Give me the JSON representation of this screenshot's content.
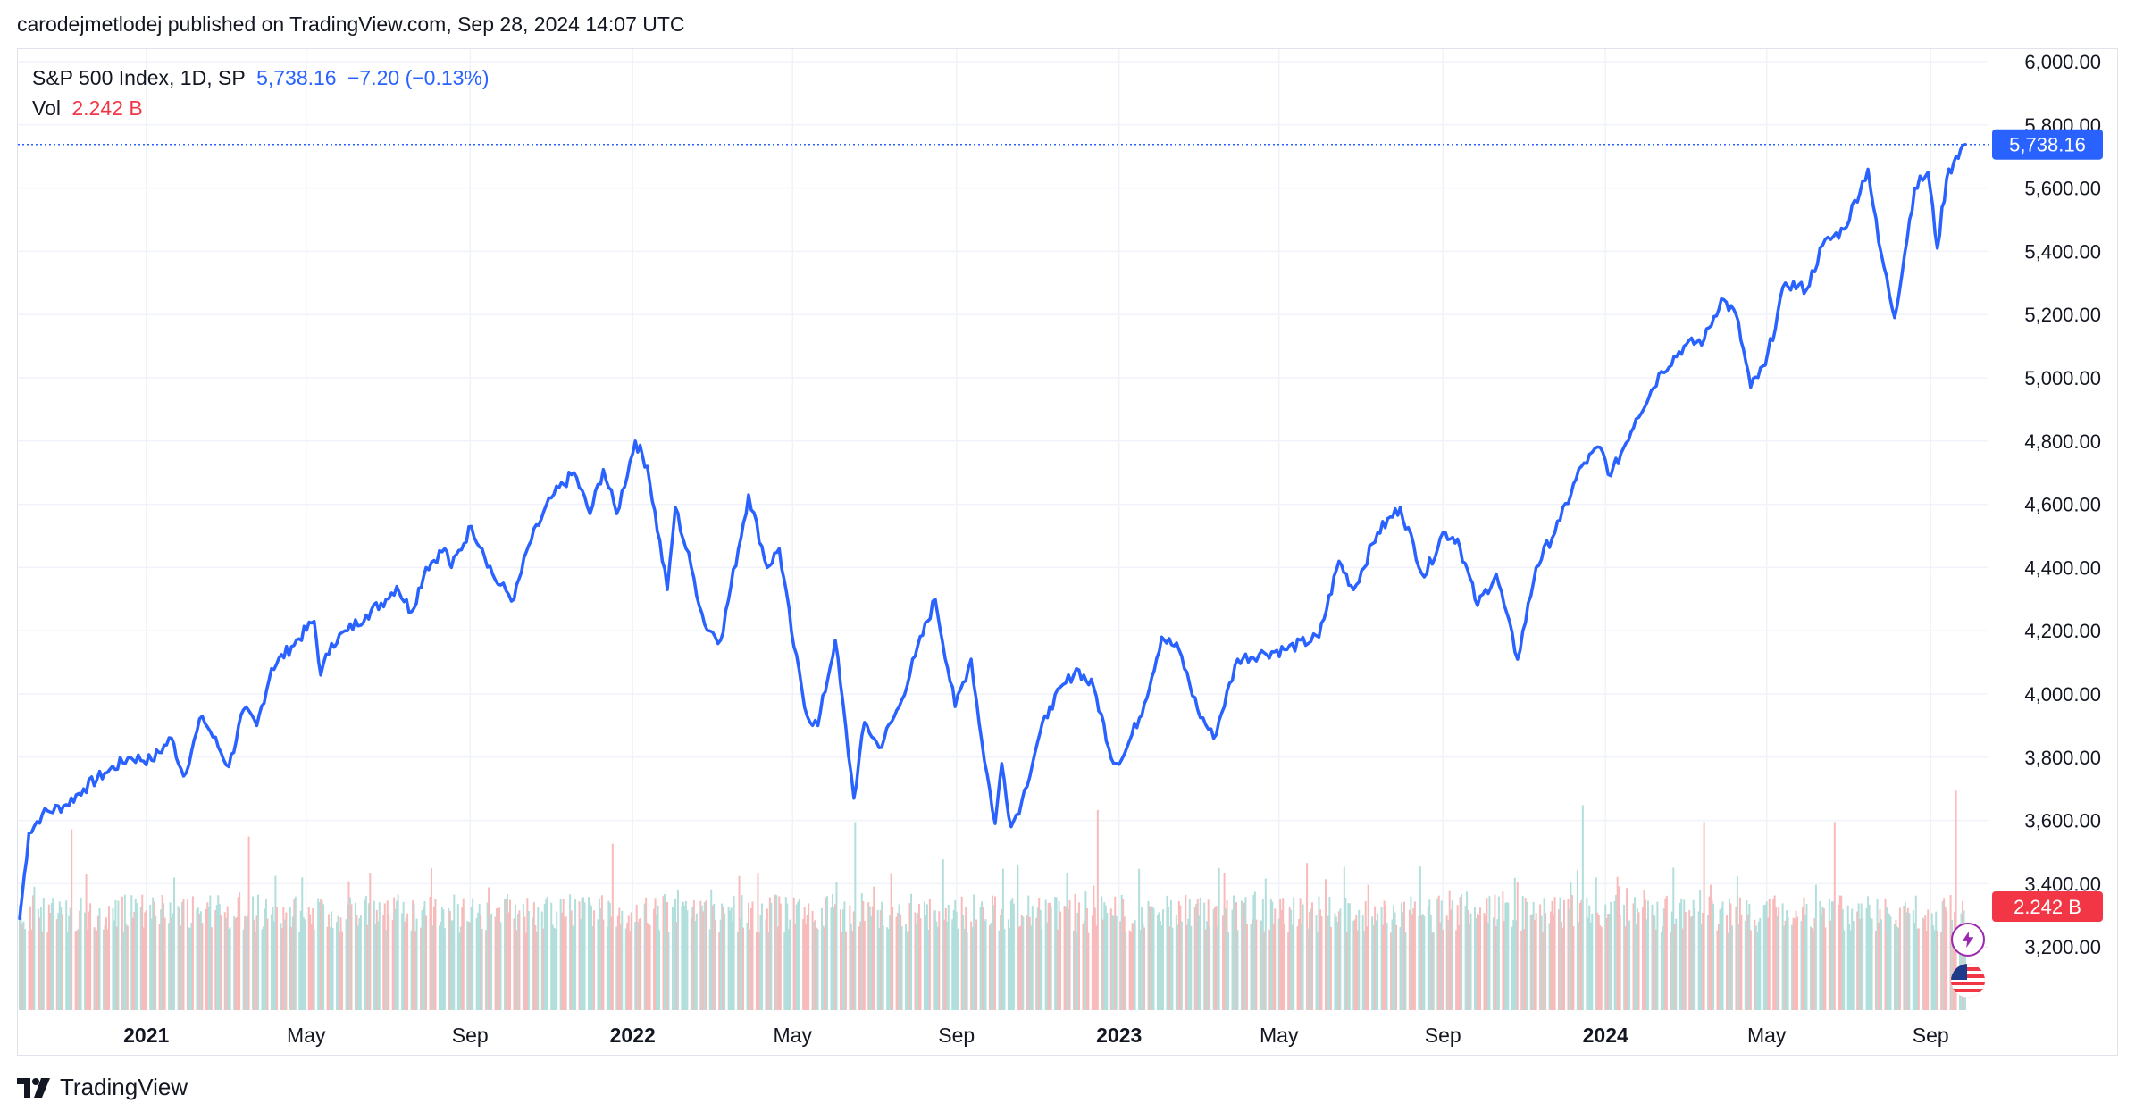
{
  "header": {
    "published_text": "carodejmetlodej published on TradingView.com, Sep 28, 2024 14:07 UTC"
  },
  "legend": {
    "symbol": "S&P 500 Index, 1D, SP",
    "last_price": "5,738.16",
    "change": "−7.20 (−0.13%)",
    "vol_label": "Vol",
    "vol_value": "2.242 B"
  },
  "price_tag": "5,738.16",
  "volume_tag": "2.242 B",
  "footer": {
    "brand": "TradingView"
  },
  "colors": {
    "line": "#2962ff",
    "up_volume": "#b2dfdb",
    "down_volume": "#f8bbbb",
    "volume_tag": "#f23645",
    "grid": "#f0f3fa"
  },
  "chart_data": {
    "type": "line",
    "title": "S&P 500 Index, 1D, SP",
    "y_axis": {
      "min": 3000,
      "max": 6000,
      "ticks": [
        "6,000.00",
        "5,800.00",
        "5,600.00",
        "5,400.00",
        "5,200.00",
        "5,000.00",
        "4,800.00",
        "4,600.00",
        "4,400.00",
        "4,200.00",
        "4,000.00",
        "3,800.00",
        "3,600.00",
        "3,400.00",
        "3,200.00"
      ],
      "tick_values": [
        6000,
        5800,
        5600,
        5400,
        5200,
        5000,
        4800,
        4600,
        4400,
        4200,
        4000,
        3800,
        3600,
        3400,
        3200
      ]
    },
    "x_axis": {
      "range": [
        "2020-09-28",
        "2024-09-27"
      ],
      "ticks": [
        {
          "label": "2021",
          "date": "2021-01-01",
          "bold": true
        },
        {
          "label": "May",
          "date": "2021-05-01",
          "bold": false
        },
        {
          "label": "Sep",
          "date": "2021-09-01",
          "bold": false
        },
        {
          "label": "2022",
          "date": "2022-01-01",
          "bold": true
        },
        {
          "label": "May",
          "date": "2022-05-01",
          "bold": false
        },
        {
          "label": "Sep",
          "date": "2022-09-01",
          "bold": false
        },
        {
          "label": "2023",
          "date": "2023-01-01",
          "bold": true
        },
        {
          "label": "May",
          "date": "2023-05-01",
          "bold": false
        },
        {
          "label": "Sep",
          "date": "2023-09-01",
          "bold": false
        },
        {
          "label": "2024",
          "date": "2024-01-01",
          "bold": true
        },
        {
          "label": "May",
          "date": "2024-05-01",
          "bold": false
        },
        {
          "label": "Sep",
          "date": "2024-09-01",
          "bold": false
        }
      ]
    },
    "series": [
      {
        "name": "S&P 500 Index close",
        "points": [
          [
            "2020-09-28",
            3290
          ],
          [
            "2020-10-05",
            3560
          ],
          [
            "2020-10-15",
            3620
          ],
          [
            "2020-11-02",
            3650
          ],
          [
            "2020-11-15",
            3700
          ],
          [
            "2020-12-01",
            3750
          ],
          [
            "2020-12-20",
            3800
          ],
          [
            "2021-01-05",
            3790
          ],
          [
            "2021-01-20",
            3860
          ],
          [
            "2021-01-29",
            3740
          ],
          [
            "2021-02-12",
            3930
          ],
          [
            "2021-03-04",
            3770
          ],
          [
            "2021-03-15",
            3950
          ],
          [
            "2021-03-25",
            3900
          ],
          [
            "2021-04-05",
            4080
          ],
          [
            "2021-04-20",
            4150
          ],
          [
            "2021-05-07",
            4230
          ],
          [
            "2021-05-12",
            4060
          ],
          [
            "2021-05-20",
            4160
          ],
          [
            "2021-06-01",
            4200
          ],
          [
            "2021-06-15",
            4250
          ],
          [
            "2021-06-30",
            4300
          ],
          [
            "2021-07-08",
            4340
          ],
          [
            "2021-07-19",
            4260
          ],
          [
            "2021-07-30",
            4400
          ],
          [
            "2021-08-13",
            4460
          ],
          [
            "2021-08-18",
            4400
          ],
          [
            "2021-09-02",
            4530
          ],
          [
            "2021-09-10",
            4460
          ],
          [
            "2021-09-20",
            4360
          ],
          [
            "2021-10-04",
            4300
          ],
          [
            "2021-10-15",
            4470
          ],
          [
            "2021-11-01",
            4620
          ],
          [
            "2021-11-18",
            4700
          ],
          [
            "2021-11-30",
            4570
          ],
          [
            "2021-12-10",
            4710
          ],
          [
            "2021-12-20",
            4570
          ],
          [
            "2022-01-03",
            4800
          ],
          [
            "2022-01-12",
            4720
          ],
          [
            "2022-01-27",
            4330
          ],
          [
            "2022-02-02",
            4590
          ],
          [
            "2022-02-14",
            4400
          ],
          [
            "2022-02-24",
            4220
          ],
          [
            "2022-03-08",
            4170
          ],
          [
            "2022-03-29",
            4630
          ],
          [
            "2022-04-12",
            4400
          ],
          [
            "2022-04-21",
            4460
          ],
          [
            "2022-05-02",
            4150
          ],
          [
            "2022-05-12",
            3930
          ],
          [
            "2022-05-20",
            3900
          ],
          [
            "2022-06-02",
            4170
          ],
          [
            "2022-06-16",
            3670
          ],
          [
            "2022-06-24",
            3910
          ],
          [
            "2022-07-05",
            3830
          ],
          [
            "2022-07-20",
            3960
          ],
          [
            "2022-08-01",
            4120
          ],
          [
            "2022-08-16",
            4300
          ],
          [
            "2022-08-31",
            3960
          ],
          [
            "2022-09-12",
            4110
          ],
          [
            "2022-09-20",
            3850
          ],
          [
            "2022-09-30",
            3590
          ],
          [
            "2022-10-05",
            3780
          ],
          [
            "2022-10-12",
            3580
          ],
          [
            "2022-10-20",
            3660
          ],
          [
            "2022-11-01",
            3850
          ],
          [
            "2022-11-10",
            3960
          ],
          [
            "2022-11-30",
            4080
          ],
          [
            "2022-12-13",
            4020
          ],
          [
            "2022-12-28",
            3780
          ],
          [
            "2023-01-05",
            3810
          ],
          [
            "2023-01-20",
            3970
          ],
          [
            "2023-02-02",
            4180
          ],
          [
            "2023-02-15",
            4140
          ],
          [
            "2023-03-01",
            3950
          ],
          [
            "2023-03-13",
            3860
          ],
          [
            "2023-03-31",
            4110
          ],
          [
            "2023-04-20",
            4130
          ],
          [
            "2023-05-05",
            4140
          ],
          [
            "2023-05-31",
            4180
          ],
          [
            "2023-06-15",
            4420
          ],
          [
            "2023-06-26",
            4330
          ],
          [
            "2023-07-14",
            4510
          ],
          [
            "2023-07-31",
            4590
          ],
          [
            "2023-08-18",
            4370
          ],
          [
            "2023-09-01",
            4510
          ],
          [
            "2023-09-12",
            4490
          ],
          [
            "2023-09-27",
            4280
          ],
          [
            "2023-10-11",
            4380
          ],
          [
            "2023-10-27",
            4110
          ],
          [
            "2023-11-10",
            4400
          ],
          [
            "2023-11-28",
            4550
          ],
          [
            "2023-12-14",
            4720
          ],
          [
            "2023-12-28",
            4780
          ],
          [
            "2024-01-05",
            4690
          ],
          [
            "2024-01-24",
            4870
          ],
          [
            "2024-02-12",
            5020
          ],
          [
            "2024-02-29",
            5100
          ],
          [
            "2024-03-15",
            5120
          ],
          [
            "2024-03-28",
            5250
          ],
          [
            "2024-04-08",
            5200
          ],
          [
            "2024-04-19",
            4970
          ],
          [
            "2024-04-30",
            5040
          ],
          [
            "2024-05-15",
            5300
          ],
          [
            "2024-05-31",
            5280
          ],
          [
            "2024-06-12",
            5420
          ],
          [
            "2024-06-28",
            5470
          ],
          [
            "2024-07-16",
            5660
          ],
          [
            "2024-07-24",
            5430
          ],
          [
            "2024-08-05",
            5190
          ],
          [
            "2024-08-20",
            5600
          ],
          [
            "2024-08-30",
            5650
          ],
          [
            "2024-09-06",
            5410
          ],
          [
            "2024-09-13",
            5630
          ],
          [
            "2024-09-20",
            5700
          ],
          [
            "2024-09-27",
            5738.16
          ]
        ]
      }
    ],
    "volume_series": {
      "name": "Vol",
      "last_value": "2.242 B",
      "bars_per_period_note": "daily volume bars, red = down day, teal = up day",
      "spikes": [
        {
          "date": "2020-11-06",
          "value": 7.5,
          "dir": "down"
        },
        {
          "date": "2021-03-19",
          "value": 7.2,
          "dir": "down"
        },
        {
          "date": "2021-06-18",
          "value": 5.7,
          "dir": "down"
        },
        {
          "date": "2021-12-17",
          "value": 6.9,
          "dir": "down"
        },
        {
          "date": "2022-06-17",
          "value": 7.8,
          "dir": "up"
        },
        {
          "date": "2022-12-16",
          "value": 8.3,
          "dir": "down"
        },
        {
          "date": "2023-03-17",
          "value": 5.9,
          "dir": "up"
        },
        {
          "date": "2023-12-15",
          "value": 8.5,
          "dir": "up"
        },
        {
          "date": "2024-03-15",
          "value": 7.8,
          "dir": "down"
        },
        {
          "date": "2024-06-21",
          "value": 7.8,
          "dir": "down"
        },
        {
          "date": "2024-09-20",
          "value": 9.1,
          "dir": "down"
        }
      ],
      "typical_range": [
        3.2,
        4.8
      ]
    },
    "last_price_line": 5738.16
  }
}
